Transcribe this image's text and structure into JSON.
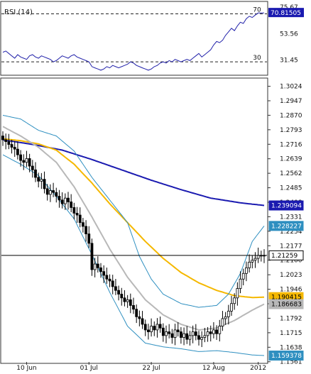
{
  "chart_data": [
    {
      "type": "line",
      "panel": "indicator",
      "title": "RSI (14)",
      "ylim": [
        20,
        78
      ],
      "yticks": [
        31.45,
        53.56,
        75.67
      ],
      "levels": [
        {
          "value": 70,
          "label": "70"
        },
        {
          "value": 30,
          "label": "30"
        }
      ],
      "last_value": 70.81505,
      "last_value_label": "70.81505",
      "grid": false,
      "series": [
        {
          "color": "#2222aa",
          "values": [
            38,
            39,
            37,
            35,
            33,
            36,
            34,
            33,
            32,
            35,
            36,
            34,
            33,
            35,
            34,
            33,
            32,
            30,
            31,
            33,
            35,
            34,
            33,
            35,
            36,
            34,
            33,
            32,
            31,
            30,
            26,
            25,
            24,
            23,
            24,
            26,
            25,
            27,
            26,
            25,
            26,
            27,
            28,
            30,
            29,
            27,
            26,
            25,
            24,
            23,
            24,
            26,
            27,
            29,
            30,
            29,
            31,
            30,
            32,
            31,
            30,
            31,
            32,
            31,
            33,
            35,
            37,
            34,
            36,
            38,
            40,
            44,
            47,
            46,
            48,
            52,
            55,
            58,
            56,
            60,
            63,
            62,
            66,
            68,
            67,
            69,
            70.8,
            70.8,
            70.8
          ]
        }
      ]
    },
    {
      "type": "candlestick",
      "panel": "price",
      "ylim": [
        1.156,
        1.306
      ],
      "yticks": [
        1.3024,
        1.2947,
        1.287,
        1.2793,
        1.2716,
        1.2639,
        1.2562,
        1.2485,
        1.2408,
        1.2331,
        1.2254,
        1.2177,
        1.21,
        1.2023,
        1.1946,
        1.1869,
        1.1792,
        1.1715,
        1.1638,
        1.1561
      ],
      "xticks": [
        "10 Jun",
        "01 Jul",
        "22 Jul",
        "12 Aug",
        "2012"
      ],
      "xtick_index": [
        8,
        29,
        50,
        71,
        86
      ],
      "n": 89,
      "grid": false,
      "value_tags": [
        {
          "text": "1.239094",
          "value": 1.239094,
          "bg": "#1a1ab0",
          "fg": "#ffffff"
        },
        {
          "text": "1.228227",
          "value": 1.228227,
          "bg": "#2e8fc0",
          "fg": "#ffffff"
        },
        {
          "text": "1.21259",
          "value": 1.21259,
          "bg": "#ffffff",
          "fg": "#000000",
          "border": "#000000"
        },
        {
          "text": "1.190415",
          "value": 1.190415,
          "bg": "#f5b800",
          "fg": "#000000"
        },
        {
          "text": "1.186683",
          "value": 1.186683,
          "bg": "#b8b8b8",
          "fg": "#000000"
        },
        {
          "text": "1.159378",
          "value": 1.159378,
          "bg": "#2e8fc0",
          "fg": "#ffffff"
        }
      ],
      "last_price": 1.21259,
      "close": [
        1.274,
        1.273,
        1.2715,
        1.27,
        1.269,
        1.266,
        1.263,
        1.262,
        1.264,
        1.26,
        1.258,
        1.254,
        1.252,
        1.253,
        1.248,
        1.245,
        1.247,
        1.246,
        1.244,
        1.242,
        1.24,
        1.243,
        1.241,
        1.238,
        1.235,
        1.234,
        1.23,
        1.228,
        1.224,
        1.219,
        1.205,
        1.208,
        1.206,
        1.204,
        1.202,
        1.2,
        1.199,
        1.196,
        1.194,
        1.192,
        1.19,
        1.188,
        1.189,
        1.186,
        1.184,
        1.18,
        1.179,
        1.176,
        1.173,
        1.172,
        1.175,
        1.173,
        1.176,
        1.174,
        1.17,
        1.172,
        1.171,
        1.169,
        1.173,
        1.172,
        1.169,
        1.171,
        1.168,
        1.17,
        1.172,
        1.17,
        1.168,
        1.169,
        1.17,
        1.172,
        1.171,
        1.173,
        1.171,
        1.175,
        1.179,
        1.18,
        1.183,
        1.187,
        1.19,
        1.195,
        1.2,
        1.203,
        1.206,
        1.209,
        1.21,
        1.211,
        1.2126,
        1.2126,
        1.2126
      ],
      "series": [
        {
          "kind": "ma_slow",
          "color": "#1a1ab0",
          "anchors": [
            [
              0,
              1.274
            ],
            [
              10,
              1.2715
            ],
            [
              20,
              1.2685
            ],
            [
              30,
              1.2635
            ],
            [
              40,
              1.258
            ],
            [
              50,
              1.2525
            ],
            [
              60,
              1.2475
            ],
            [
              70,
              1.243
            ],
            [
              80,
              1.2405
            ],
            [
              88,
              1.2391
            ]
          ]
        },
        {
          "kind": "ma_fast",
          "color": "#f5b800",
          "anchors": [
            [
              0,
              1.2745
            ],
            [
              6,
              1.2735
            ],
            [
              12,
              1.2718
            ],
            [
              18,
              1.2685
            ],
            [
              24,
              1.261
            ],
            [
              30,
              1.251
            ],
            [
              36,
              1.24
            ],
            [
              42,
              1.23
            ],
            [
              48,
              1.22
            ],
            [
              54,
              1.211
            ],
            [
              60,
              1.2035
            ],
            [
              66,
              1.198
            ],
            [
              72,
              1.194
            ],
            [
              78,
              1.1912
            ],
            [
              84,
              1.1902
            ],
            [
              88,
              1.1904
            ]
          ]
        },
        {
          "kind": "bb_mid",
          "color": "#b8b8b8",
          "anchors": [
            [
              0,
              1.281
            ],
            [
              6,
              1.276
            ],
            [
              12,
              1.27
            ],
            [
              18,
              1.262
            ],
            [
              24,
              1.249
            ],
            [
              30,
              1.233
            ],
            [
              36,
              1.216
            ],
            [
              42,
              1.201
            ],
            [
              48,
              1.189
            ],
            [
              54,
              1.181
            ],
            [
              60,
              1.176
            ],
            [
              66,
              1.173
            ],
            [
              72,
              1.174
            ],
            [
              78,
              1.178
            ],
            [
              84,
              1.1835
            ],
            [
              88,
              1.1867
            ]
          ]
        },
        {
          "kind": "bb_upper",
          "color": "#2e8fc0",
          "anchors": [
            [
              0,
              1.287
            ],
            [
              6,
              1.285
            ],
            [
              12,
              1.279
            ],
            [
              18,
              1.276
            ],
            [
              24,
              1.268
            ],
            [
              30,
              1.254
            ],
            [
              36,
              1.242
            ],
            [
              42,
              1.23
            ],
            [
              46,
              1.212
            ],
            [
              50,
              1.2
            ],
            [
              54,
              1.192
            ],
            [
              60,
              1.187
            ],
            [
              66,
              1.185
            ],
            [
              72,
              1.186
            ],
            [
              76,
              1.192
            ],
            [
              80,
              1.203
            ],
            [
              84,
              1.22
            ],
            [
              88,
              1.2282
            ]
          ]
        },
        {
          "kind": "bb_lower",
          "color": "#2e8fc0",
          "anchors": [
            [
              0,
              1.266
            ],
            [
              6,
              1.261
            ],
            [
              12,
              1.255
            ],
            [
              18,
              1.244
            ],
            [
              24,
              1.232
            ],
            [
              30,
              1.213
            ],
            [
              36,
              1.193
            ],
            [
              42,
              1.175
            ],
            [
              48,
              1.166
            ],
            [
              54,
              1.164
            ],
            [
              60,
              1.163
            ],
            [
              66,
              1.1615
            ],
            [
              72,
              1.162
            ],
            [
              78,
              1.161
            ],
            [
              84,
              1.1597
            ],
            [
              88,
              1.1594
            ]
          ]
        }
      ]
    }
  ]
}
